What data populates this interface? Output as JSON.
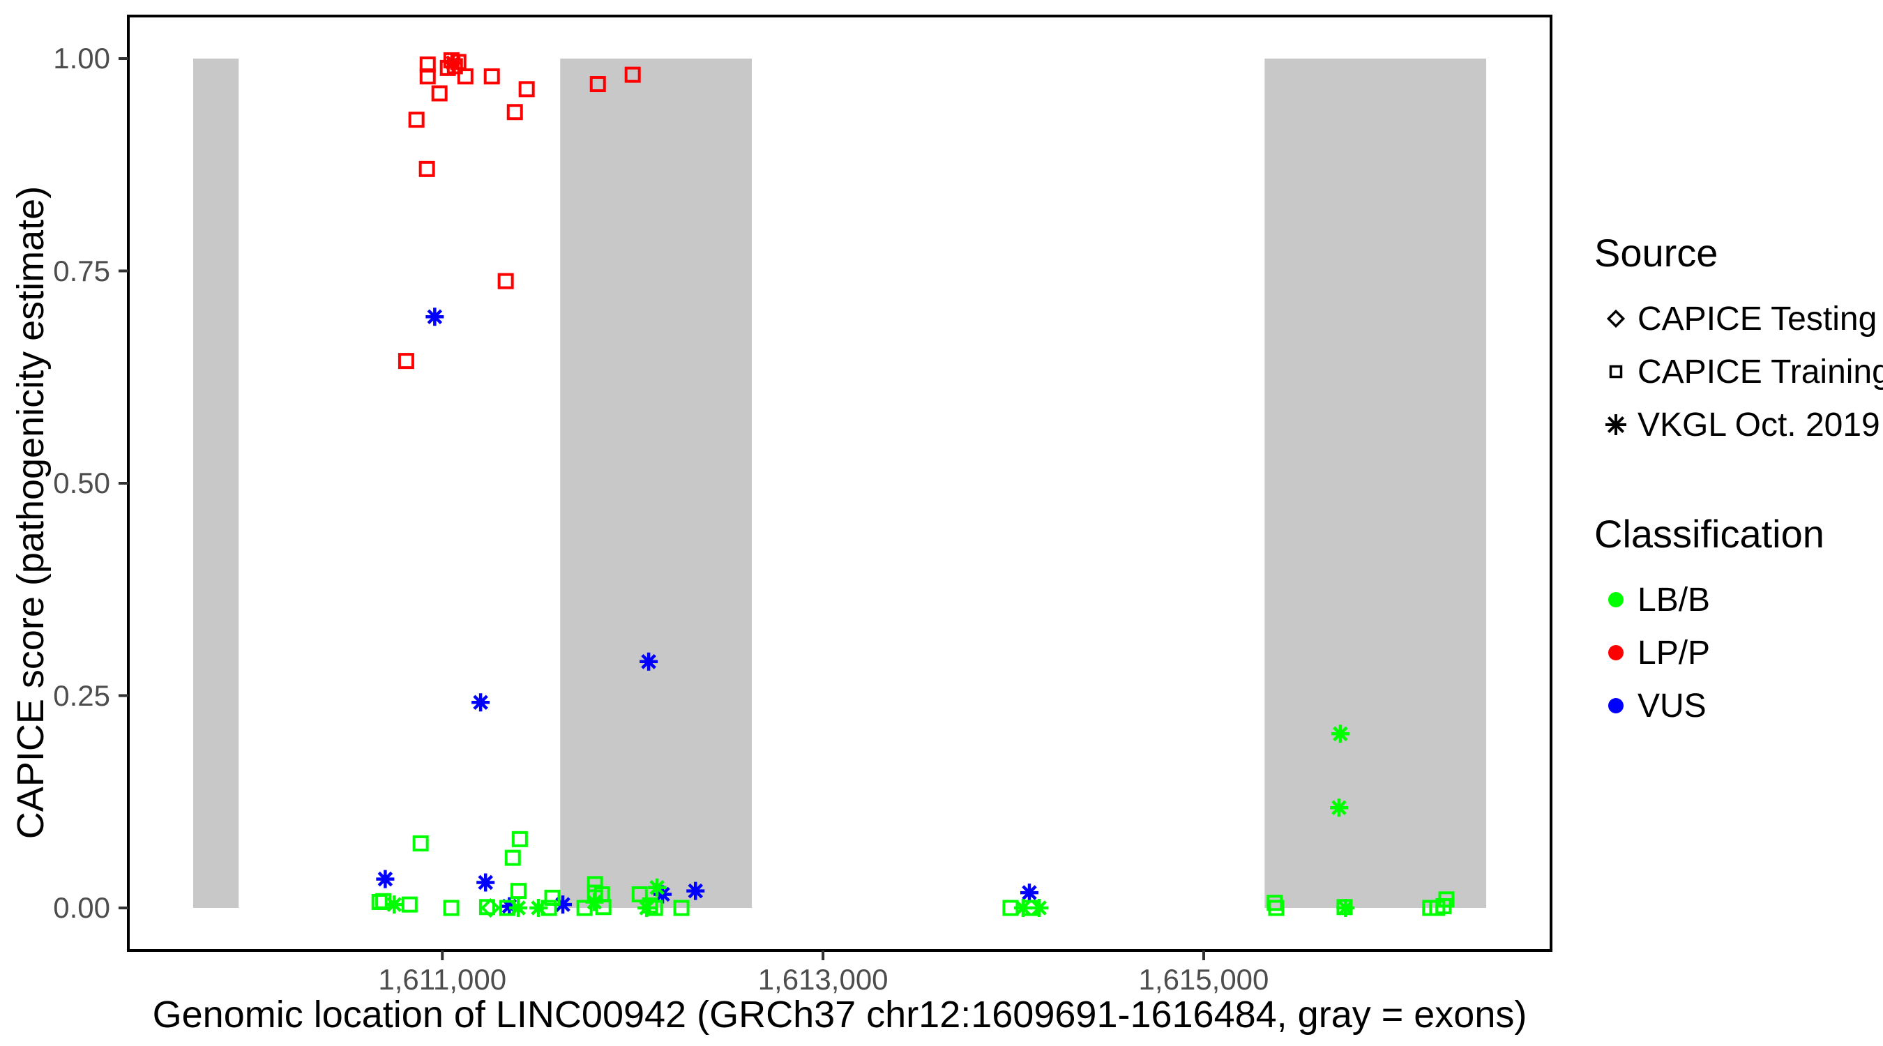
{
  "figure": {
    "x_title": "Genomic location of LINC00942 (GRCh37 chr12:1609691-1616484, gray = exons)",
    "y_title": "CAPICE score (pathogenicity estimate)"
  },
  "axes": {
    "x": {
      "ticks": [
        {
          "value": 1611000,
          "label": "1,611,000"
        },
        {
          "value": 1613000,
          "label": "1,613,000"
        },
        {
          "value": 1615000,
          "label": "1,615,000"
        }
      ]
    },
    "y": {
      "ticks": [
        {
          "value": 1.0,
          "label": "1.00"
        },
        {
          "value": 0.75,
          "label": "0.75"
        },
        {
          "value": 0.5,
          "label": "0.50"
        },
        {
          "value": 0.25,
          "label": "0.25"
        },
        {
          "value": 0.0,
          "label": "0.00"
        }
      ]
    }
  },
  "legend": {
    "source": {
      "title": "Source",
      "items": [
        {
          "label": "CAPICE Testing",
          "shape": "diamond"
        },
        {
          "label": "CAPICE Training",
          "shape": "square"
        },
        {
          "label": "VKGL Oct. 2019",
          "shape": "asterisk"
        }
      ]
    },
    "classification": {
      "title": "Classification",
      "items": [
        {
          "label": "LB/B",
          "color_key": "lbb"
        },
        {
          "label": "LP/P",
          "color_key": "lpp"
        },
        {
          "label": "VUS",
          "color_key": "vus"
        }
      ]
    }
  },
  "colors": {
    "lbb": "#00FF00",
    "lpp": "#FF0000",
    "vus": "#0000FF",
    "exon": "#C8C8C8",
    "panel_border": "#000000",
    "tick": "#333333"
  },
  "chart_data": {
    "type": "scatter",
    "title": "",
    "xlabel": "Genomic location of LINC00942 (GRCh37 chr12:1609691-1616484, gray = exons)",
    "ylabel": "CAPICE score (pathogenicity estimate)",
    "x_domain": [
      1609691,
      1616484
    ],
    "y_domain": [
      0,
      1
    ],
    "grid": false,
    "legend_position": "right",
    "exons_bp": [
      [
        1609691,
        1609930
      ],
      [
        1611619,
        1612626
      ],
      [
        1615320,
        1616484
      ]
    ],
    "points": [
      {
        "bp": 1610923,
        "score": 0.993,
        "shape": "square",
        "cls": "lpp"
      },
      {
        "bp": 1610923,
        "score": 0.979,
        "shape": "square",
        "cls": "lpp"
      },
      {
        "bp": 1611029,
        "score": 0.989,
        "shape": "square",
        "cls": "lpp"
      },
      {
        "bp": 1611048,
        "score": 0.998,
        "shape": "square",
        "cls": "lpp"
      },
      {
        "bp": 1611066,
        "score": 0.991,
        "shape": "square",
        "cls": "lpp"
      },
      {
        "bp": 1611084,
        "score": 0.996,
        "shape": "square",
        "cls": "lpp"
      },
      {
        "bp": 1611121,
        "score": 0.979,
        "shape": "square",
        "cls": "lpp"
      },
      {
        "bp": 1611260,
        "score": 0.979,
        "shape": "square",
        "cls": "lpp"
      },
      {
        "bp": 1611443,
        "score": 0.964,
        "shape": "square",
        "cls": "lpp"
      },
      {
        "bp": 1610985,
        "score": 0.959,
        "shape": "square",
        "cls": "lpp"
      },
      {
        "bp": 1611381,
        "score": 0.937,
        "shape": "square",
        "cls": "lpp"
      },
      {
        "bp": 1610864,
        "score": 0.928,
        "shape": "square",
        "cls": "lpp"
      },
      {
        "bp": 1610919,
        "score": 0.87,
        "shape": "square",
        "cls": "lpp"
      },
      {
        "bp": 1611333,
        "score": 0.738,
        "shape": "square",
        "cls": "lpp"
      },
      {
        "bp": 1610810,
        "score": 0.644,
        "shape": "square",
        "cls": "lpp"
      },
      {
        "bp": 1611817,
        "score": 0.97,
        "shape": "square",
        "cls": "lpp"
      },
      {
        "bp": 1612000,
        "score": 0.981,
        "shape": "square",
        "cls": "lpp"
      },
      {
        "bp": 1611057,
        "score": 0.995,
        "shape": "asterisk",
        "cls": "lpp"
      },
      {
        "bp": 1610960,
        "score": 0.696,
        "shape": "asterisk",
        "cls": "vus"
      },
      {
        "bp": 1611201,
        "score": 0.242,
        "shape": "asterisk",
        "cls": "vus"
      },
      {
        "bp": 1612084,
        "score": 0.29,
        "shape": "asterisk",
        "cls": "vus"
      },
      {
        "bp": 1610700,
        "score": 0.034,
        "shape": "asterisk",
        "cls": "vus"
      },
      {
        "bp": 1611227,
        "score": 0.03,
        "shape": "asterisk",
        "cls": "vus"
      },
      {
        "bp": 1611352,
        "score": 0.002,
        "shape": "asterisk",
        "cls": "vus"
      },
      {
        "bp": 1611633,
        "score": 0.004,
        "shape": "asterisk",
        "cls": "vus"
      },
      {
        "bp": 1612157,
        "score": 0.016,
        "shape": "asterisk",
        "cls": "vus"
      },
      {
        "bp": 1612330,
        "score": 0.02,
        "shape": "asterisk",
        "cls": "vus"
      },
      {
        "bp": 1614084,
        "score": 0.018,
        "shape": "asterisk",
        "cls": "vus"
      },
      {
        "bp": 1610886,
        "score": 0.076,
        "shape": "square",
        "cls": "lbb"
      },
      {
        "bp": 1610670,
        "score": 0.007,
        "shape": "square",
        "cls": "lbb"
      },
      {
        "bp": 1610690,
        "score": 0.008,
        "shape": "square",
        "cls": "lbb"
      },
      {
        "bp": 1610828,
        "score": 0.004,
        "shape": "square",
        "cls": "lbb"
      },
      {
        "bp": 1611047,
        "score": 0.0,
        "shape": "square",
        "cls": "lbb"
      },
      {
        "bp": 1611235,
        "score": 0.001,
        "shape": "square",
        "cls": "lbb"
      },
      {
        "bp": 1611341,
        "score": 0.0,
        "shape": "square",
        "cls": "lbb"
      },
      {
        "bp": 1611400,
        "score": 0.02,
        "shape": "square",
        "cls": "lbb"
      },
      {
        "bp": 1611407,
        "score": 0.081,
        "shape": "square",
        "cls": "lbb"
      },
      {
        "bp": 1611370,
        "score": 0.059,
        "shape": "square",
        "cls": "lbb"
      },
      {
        "bp": 1611560,
        "score": 0.0,
        "shape": "square",
        "cls": "lbb"
      },
      {
        "bp": 1611578,
        "score": 0.012,
        "shape": "square",
        "cls": "lbb"
      },
      {
        "bp": 1611747,
        "score": 0.0,
        "shape": "square",
        "cls": "lbb"
      },
      {
        "bp": 1611802,
        "score": 0.028,
        "shape": "square",
        "cls": "lbb"
      },
      {
        "bp": 1611802,
        "score": 0.018,
        "shape": "square",
        "cls": "lbb"
      },
      {
        "bp": 1611839,
        "score": 0.016,
        "shape": "square",
        "cls": "lbb"
      },
      {
        "bp": 1611846,
        "score": 0.001,
        "shape": "square",
        "cls": "lbb"
      },
      {
        "bp": 1612037,
        "score": 0.016,
        "shape": "square",
        "cls": "lbb"
      },
      {
        "bp": 1612091,
        "score": 0.003,
        "shape": "square",
        "cls": "lbb"
      },
      {
        "bp": 1612117,
        "score": 0.0,
        "shape": "square",
        "cls": "lbb"
      },
      {
        "bp": 1612256,
        "score": 0.0,
        "shape": "square",
        "cls": "lbb"
      },
      {
        "bp": 1613985,
        "score": 0.0,
        "shape": "square",
        "cls": "lbb"
      },
      {
        "bp": 1614088,
        "score": 0.0,
        "shape": "square",
        "cls": "lbb"
      },
      {
        "bp": 1615373,
        "score": 0.006,
        "shape": "square",
        "cls": "lbb"
      },
      {
        "bp": 1615381,
        "score": 0.0,
        "shape": "square",
        "cls": "lbb"
      },
      {
        "bp": 1615740,
        "score": 0.001,
        "shape": "square",
        "cls": "lbb"
      },
      {
        "bp": 1616190,
        "score": 0.0,
        "shape": "square",
        "cls": "lbb"
      },
      {
        "bp": 1616227,
        "score": 0.0,
        "shape": "square",
        "cls": "lbb"
      },
      {
        "bp": 1616260,
        "score": 0.002,
        "shape": "square",
        "cls": "lbb"
      },
      {
        "bp": 1616275,
        "score": 0.01,
        "shape": "square",
        "cls": "lbb"
      },
      {
        "bp": 1610747,
        "score": 0.004,
        "shape": "asterisk",
        "cls": "lbb"
      },
      {
        "bp": 1611399,
        "score": 0.0,
        "shape": "asterisk",
        "cls": "lbb"
      },
      {
        "bp": 1611505,
        "score": 0.0,
        "shape": "asterisk",
        "cls": "lbb"
      },
      {
        "bp": 1611799,
        "score": 0.007,
        "shape": "asterisk",
        "cls": "lbb"
      },
      {
        "bp": 1612073,
        "score": 0.0,
        "shape": "asterisk",
        "cls": "lbb"
      },
      {
        "bp": 1612128,
        "score": 0.024,
        "shape": "asterisk",
        "cls": "lbb"
      },
      {
        "bp": 1614051,
        "score": 0.0,
        "shape": "asterisk",
        "cls": "lbb"
      },
      {
        "bp": 1614136,
        "score": 0.0,
        "shape": "asterisk",
        "cls": "lbb"
      },
      {
        "bp": 1615718,
        "score": 0.205,
        "shape": "asterisk",
        "cls": "lbb"
      },
      {
        "bp": 1615711,
        "score": 0.118,
        "shape": "asterisk",
        "cls": "lbb"
      },
      {
        "bp": 1615745,
        "score": 0.0,
        "shape": "asterisk",
        "cls": "lbb"
      },
      {
        "bp": 1611253,
        "score": 0.0,
        "shape": "diamond",
        "cls": "lbb"
      }
    ]
  }
}
